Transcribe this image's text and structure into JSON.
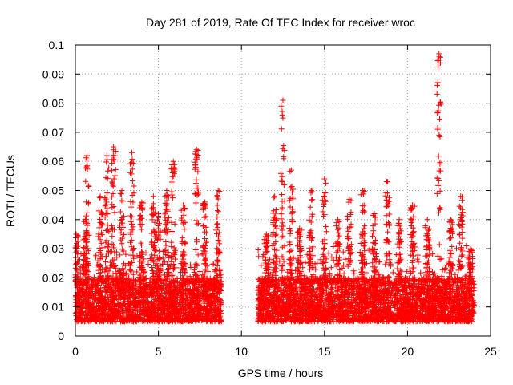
{
  "chart_data": {
    "type": "scatter",
    "title": "Day 281 of 2019, Rate Of TEC Index for receiver wroc",
    "xlabel": "GPS time / hours",
    "ylabel": "ROTI / TECUs",
    "xlim": [
      0,
      25
    ],
    "ylim": [
      0,
      0.1
    ],
    "x_ticks": [
      0,
      5,
      10,
      15,
      20,
      25
    ],
    "y_ticks": [
      0,
      0.01,
      0.02,
      0.03,
      0.04,
      0.05,
      0.06,
      0.07,
      0.08,
      0.09,
      0.1
    ],
    "x_tick_labels": [
      "0",
      "5",
      "10",
      "15",
      "20",
      "25"
    ],
    "y_tick_labels": [
      "0",
      "0.01",
      "0.02",
      "0.03",
      "0.04",
      "0.05",
      "0.06",
      "0.07",
      "0.08",
      "0.09",
      "0.1"
    ],
    "grid": true,
    "marker": "+",
    "marker_color": "#ff0000",
    "data_segments": [
      {
        "x_start": 0.0,
        "x_end": 8.8,
        "baseline_min": 0.005,
        "baseline_max": 0.02
      },
      {
        "x_start": 11.0,
        "x_end": 24.0,
        "baseline_min": 0.005,
        "baseline_max": 0.02
      }
    ],
    "series": [
      {
        "name": "ROTI",
        "peaks": [
          {
            "x": 0.05,
            "y": 0.035
          },
          {
            "x": 0.6,
            "y": 0.04
          },
          {
            "x": 0.7,
            "y": 0.062
          },
          {
            "x": 1.5,
            "y": 0.048
          },
          {
            "x": 1.9,
            "y": 0.062
          },
          {
            "x": 2.3,
            "y": 0.065
          },
          {
            "x": 2.8,
            "y": 0.05
          },
          {
            "x": 3.4,
            "y": 0.063
          },
          {
            "x": 4.0,
            "y": 0.046
          },
          {
            "x": 4.7,
            "y": 0.048
          },
          {
            "x": 5.0,
            "y": 0.042
          },
          {
            "x": 5.5,
            "y": 0.05
          },
          {
            "x": 5.9,
            "y": 0.06
          },
          {
            "x": 6.5,
            "y": 0.045
          },
          {
            "x": 7.3,
            "y": 0.064
          },
          {
            "x": 7.8,
            "y": 0.046
          },
          {
            "x": 8.6,
            "y": 0.05
          },
          {
            "x": 11.5,
            "y": 0.035
          },
          {
            "x": 12.0,
            "y": 0.048
          },
          {
            "x": 12.5,
            "y": 0.081
          },
          {
            "x": 13.0,
            "y": 0.057
          },
          {
            "x": 13.5,
            "y": 0.037
          },
          {
            "x": 14.2,
            "y": 0.05
          },
          {
            "x": 15.0,
            "y": 0.054
          },
          {
            "x": 15.8,
            "y": 0.04
          },
          {
            "x": 16.5,
            "y": 0.047
          },
          {
            "x": 17.3,
            "y": 0.05
          },
          {
            "x": 18.0,
            "y": 0.042
          },
          {
            "x": 18.8,
            "y": 0.053
          },
          {
            "x": 19.5,
            "y": 0.04
          },
          {
            "x": 20.3,
            "y": 0.045
          },
          {
            "x": 21.2,
            "y": 0.04
          },
          {
            "x": 21.9,
            "y": 0.097
          },
          {
            "x": 22.6,
            "y": 0.04
          },
          {
            "x": 23.2,
            "y": 0.048
          },
          {
            "x": 23.8,
            "y": 0.03
          }
        ]
      }
    ]
  }
}
